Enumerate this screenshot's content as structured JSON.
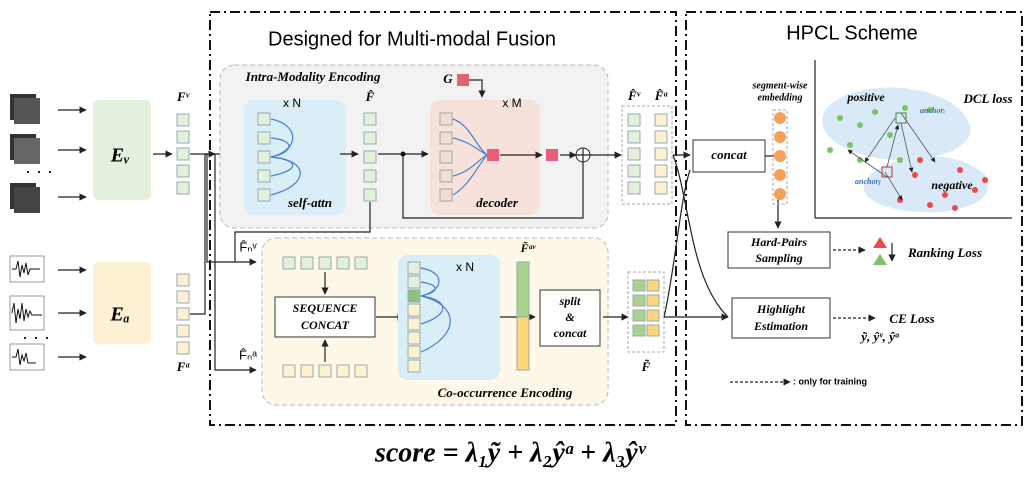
{
  "titles": {
    "fusion": "Designed for Multi-modal Fusion",
    "hpcl": "HPCL Scheme"
  },
  "encoders": {
    "video": "Eᵥ",
    "audio": "Eₐ"
  },
  "features": {
    "fv": "Fᵛ",
    "fa": "Fᵃ",
    "fhat": "F̂",
    "fhat_v": "F̂ᵛ",
    "fhat_a": "F̂ᵃ",
    "fn_v": "F̂ₙᵛ",
    "fn_a": "F̂ₙᵃ",
    "ftilde_av": "F̃ᵃᵛ",
    "ftilde": "F̃"
  },
  "intra": {
    "label": "Intra-Modality Encoding",
    "repeat_n": "x N",
    "self_attn": "self-attn",
    "g": "G",
    "repeat_m": "x M",
    "decoder": "decoder"
  },
  "cooc": {
    "label": "Co-occurrence Encoding",
    "sequence_concat": [
      "SEQUENCE",
      "CONCAT"
    ],
    "repeat_n": "x N",
    "split_concat": [
      "split",
      "&",
      "concat"
    ]
  },
  "hpcl": {
    "concat": "concat",
    "segment_embedding": [
      "segment-wise",
      "embedding"
    ],
    "positive": "positive",
    "negative": "negative",
    "dcl_loss": "DCL loss",
    "anchor_i": "anchorᵢ",
    "anchor_j": "anchorⱼ",
    "hard_pairs": [
      "Hard-Pairs",
      "Sampling"
    ],
    "ranking_loss": "Ranking Loss",
    "highlight": [
      "Highlight",
      "Estimation"
    ],
    "ce_loss": "CE Loss",
    "outputs": "ỹ, ŷᵛ, ŷᵃ",
    "training_note": ": only for training"
  },
  "formula": "score = λ₁ỹ + λ₂ŷᵃ + λ₃ŷᵛ"
}
